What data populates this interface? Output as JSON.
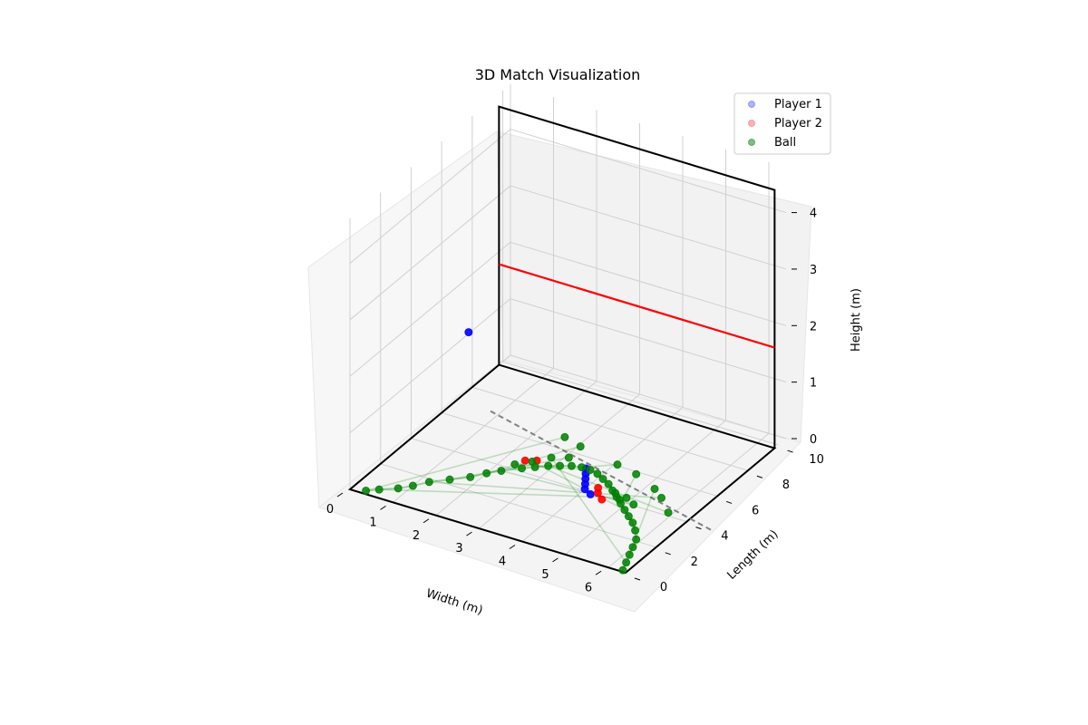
{
  "chart_data": {
    "type": "scatter",
    "title": "3D Match Visualization",
    "xlabel": "Width (m)",
    "ylabel": "Length (m)",
    "zlabel": "Height (m)",
    "xlim": [
      0,
      6.4
    ],
    "ylim": [
      0,
      10.5
    ],
    "zlim": [
      0,
      4.8
    ],
    "x_ticks": [
      "0",
      "1",
      "2",
      "3",
      "4",
      "5",
      "6"
    ],
    "y_ticks": [
      "0",
      "2",
      "4",
      "6",
      "8",
      "10"
    ],
    "z_ticks": [
      "0",
      "1",
      "2",
      "3",
      "4"
    ],
    "grid": true,
    "legend_position": "upper right",
    "legend": [
      {
        "name": "Player 1",
        "color": "#0000ff"
      },
      {
        "name": "Player 2",
        "color": "#ff0000"
      },
      {
        "name": "Ball",
        "color": "#008000"
      }
    ],
    "court": {
      "width": 6.4,
      "length": 9.75,
      "front_wall_height": 4.57,
      "tin_line_height": 1.78,
      "short_line_y": 5.44
    },
    "series": [
      {
        "name": "Player 1",
        "color": "#0000ff",
        "points": [
          [
            3.6,
            5.3,
            0
          ],
          [
            3.7,
            5.0,
            0
          ],
          [
            3.8,
            4.7,
            0
          ],
          [
            3.9,
            4.4,
            0
          ],
          [
            4.0,
            4.1,
            0
          ],
          [
            4.2,
            3.9,
            0
          ],
          [
            0.2,
            7.2,
            1.2
          ]
        ]
      },
      {
        "name": "Player 2",
        "color": "#ff0000",
        "points": [
          [
            4.2,
            4.4,
            0
          ],
          [
            4.3,
            4.1,
            0
          ],
          [
            4.5,
            3.8,
            0
          ],
          [
            2.4,
            4.7,
            0
          ],
          [
            2.6,
            4.9,
            0
          ]
        ]
      },
      {
        "name": "Ball",
        "color": "#008000",
        "points": [
          [
            0.3,
            0.2,
            0.0
          ],
          [
            0.5,
            0.5,
            0.0
          ],
          [
            0.8,
            0.9,
            0.0
          ],
          [
            1.0,
            1.3,
            0.0
          ],
          [
            1.2,
            1.8,
            0.0
          ],
          [
            1.5,
            2.3,
            0.0
          ],
          [
            1.8,
            2.8,
            0.0
          ],
          [
            2.0,
            3.3,
            0.0
          ],
          [
            2.2,
            3.7,
            0.0
          ],
          [
            2.5,
            4.2,
            0.0
          ],
          [
            2.7,
            4.5,
            0.0
          ],
          [
            2.9,
            4.8,
            0.0
          ],
          [
            3.1,
            5.0,
            0.0
          ],
          [
            3.3,
            5.2,
            0.0
          ],
          [
            3.5,
            5.3,
            0.0
          ],
          [
            3.7,
            5.3,
            0.0
          ],
          [
            3.9,
            5.2,
            0.0
          ],
          [
            4.1,
            5.0,
            0.0
          ],
          [
            4.3,
            4.8,
            0.0
          ],
          [
            4.5,
            4.5,
            0.0
          ],
          [
            4.7,
            4.2,
            0.0
          ],
          [
            4.9,
            3.9,
            0.0
          ],
          [
            5.1,
            3.6,
            0.0
          ],
          [
            5.3,
            3.3,
            0.0
          ],
          [
            5.5,
            3.0,
            0.0
          ],
          [
            5.7,
            2.6,
            0.0
          ],
          [
            5.9,
            2.1,
            0.0
          ],
          [
            6.0,
            1.6,
            0.0
          ],
          [
            6.1,
            1.1,
            0.0
          ],
          [
            6.2,
            0.6,
            0.0
          ],
          [
            6.3,
            0.1,
            0.0
          ],
          [
            3.0,
            5.6,
            0.35
          ],
          [
            3.4,
            5.5,
            0.3
          ],
          [
            4.4,
            5.1,
            0.3
          ],
          [
            4.8,
            5.2,
            0.2
          ],
          [
            5.3,
            5.0,
            0.1
          ],
          [
            5.6,
            4.6,
            0.1
          ],
          [
            5.9,
            4.2,
            0.0
          ],
          [
            4.6,
            4.4,
            0.0
          ],
          [
            4.8,
            4.1,
            0.0
          ],
          [
            5.0,
            4.0,
            0.1
          ],
          [
            5.2,
            3.9,
            0.05
          ],
          [
            2.3,
            4.3,
            0.0
          ],
          [
            2.6,
            4.6,
            0.05
          ],
          [
            2.9,
            5.0,
            0.1
          ],
          [
            3.2,
            5.3,
            0.1
          ]
        ]
      }
    ]
  }
}
